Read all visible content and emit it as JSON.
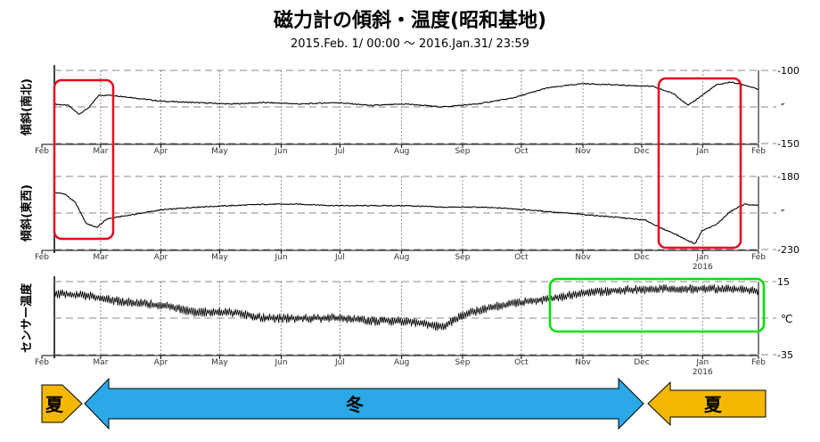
{
  "title": "磁力計の傾斜・温度(昭和基地)",
  "subtitle": "2015.Feb. 1/ 00:00 ～ 2016.Jan.31/ 23:59",
  "month_labels": [
    "Feb",
    "Mar",
    "Apr",
    "May",
    "Jun",
    "Jul",
    "Aug",
    "Sep",
    "Oct",
    "Nov",
    "Dec",
    "Jan",
    "Feb"
  ],
  "year_label": "2016",
  "season_labels": {
    "summer_left": "夏",
    "winter": "冬",
    "summer_right": "夏"
  },
  "colors": {
    "summer": "#f5b800",
    "winter": "#2aa8e8",
    "highlight_red": "#e8001c",
    "highlight_green": "#00e000",
    "trace": "#000000"
  },
  "chart_data": [
    {
      "type": "line",
      "ylabel": "傾斜(南北)",
      "unit": "″",
      "tick_labels": [
        "-100",
        "-150"
      ],
      "ylim": [
        -150,
        -100
      ],
      "x": [
        0,
        0.02,
        0.035,
        0.05,
        0.063,
        0.08,
        0.1,
        0.15,
        0.2,
        0.25,
        0.3,
        0.35,
        0.4,
        0.45,
        0.5,
        0.55,
        0.6,
        0.65,
        0.7,
        0.75,
        0.8,
        0.85,
        0.88,
        0.9,
        0.92,
        0.94,
        0.96,
        0.98,
        1.0
      ],
      "y": [
        -123,
        -124,
        -130,
        -125,
        -117,
        -117,
        -118,
        -121,
        -122,
        -123,
        -122,
        -123,
        -122,
        -124,
        -123,
        -125,
        -123,
        -119,
        -112,
        -109,
        -110,
        -111,
        -116,
        -124,
        -117,
        -110,
        -108,
        -110,
        -113
      ]
    },
    {
      "type": "line",
      "ylabel": "傾斜(東西)",
      "unit": "″",
      "tick_labels": [
        "-180",
        "-230"
      ],
      "ylim": [
        -230,
        -180
      ],
      "x": [
        0,
        0.015,
        0.03,
        0.045,
        0.06,
        0.075,
        0.1,
        0.15,
        0.2,
        0.25,
        0.3,
        0.35,
        0.4,
        0.45,
        0.5,
        0.55,
        0.6,
        0.65,
        0.7,
        0.75,
        0.8,
        0.84,
        0.86,
        0.88,
        0.9,
        0.91,
        0.92,
        0.94,
        0.96,
        0.98,
        1.0
      ],
      "y": [
        -191,
        -192,
        -198,
        -212,
        -215,
        -209,
        -207,
        -203,
        -201,
        -200,
        -199,
        -199,
        -200,
        -200,
        -200,
        -201,
        -201,
        -202,
        -204,
        -206,
        -208,
        -210,
        -215,
        -219,
        -224,
        -226,
        -217,
        -213,
        -204,
        -199,
        -200
      ]
    },
    {
      "type": "line",
      "ylabel": "センサー温度",
      "unit": "℃",
      "tick_labels": [
        "15",
        "-35"
      ],
      "ylim": [
        -35,
        15
      ],
      "x": [
        0,
        0.05,
        0.1,
        0.15,
        0.2,
        0.25,
        0.3,
        0.35,
        0.4,
        0.45,
        0.5,
        0.55,
        0.58,
        0.6,
        0.65,
        0.7,
        0.75,
        0.8,
        0.85,
        0.9,
        0.95,
        1.0
      ],
      "y": [
        7,
        5,
        1,
        -1,
        -6,
        -6,
        -10,
        -10,
        -10,
        -12,
        -12,
        -16,
        -8,
        -5,
        0,
        3,
        7,
        9,
        10,
        10,
        10,
        9
      ]
    }
  ]
}
